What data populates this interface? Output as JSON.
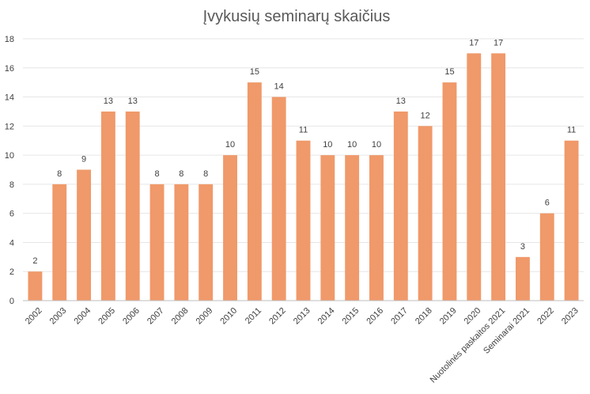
{
  "chart_data": {
    "type": "bar",
    "title": "Įvykusių seminarų skaičius",
    "xlabel": "",
    "ylabel": "",
    "ylim": [
      0,
      18
    ],
    "yticks": [
      0,
      2,
      4,
      6,
      8,
      10,
      12,
      14,
      16,
      18
    ],
    "grid": true,
    "legend": "none",
    "bar_color": "#f0996a",
    "categories": [
      "2002",
      "2003",
      "2004",
      "2005",
      "2006",
      "2007",
      "2008",
      "2009",
      "2010",
      "2011",
      "2012",
      "2013",
      "2014",
      "2015",
      "2016",
      "2017",
      "2018",
      "2019",
      "2020",
      "Nuotolinės paskaitos 2021",
      "Seminarai 2021",
      "2022",
      "2023"
    ],
    "values": [
      2,
      8,
      9,
      13,
      13,
      8,
      8,
      8,
      10,
      15,
      14,
      11,
      10,
      10,
      10,
      13,
      12,
      15,
      17,
      17,
      3,
      6,
      11
    ]
  }
}
